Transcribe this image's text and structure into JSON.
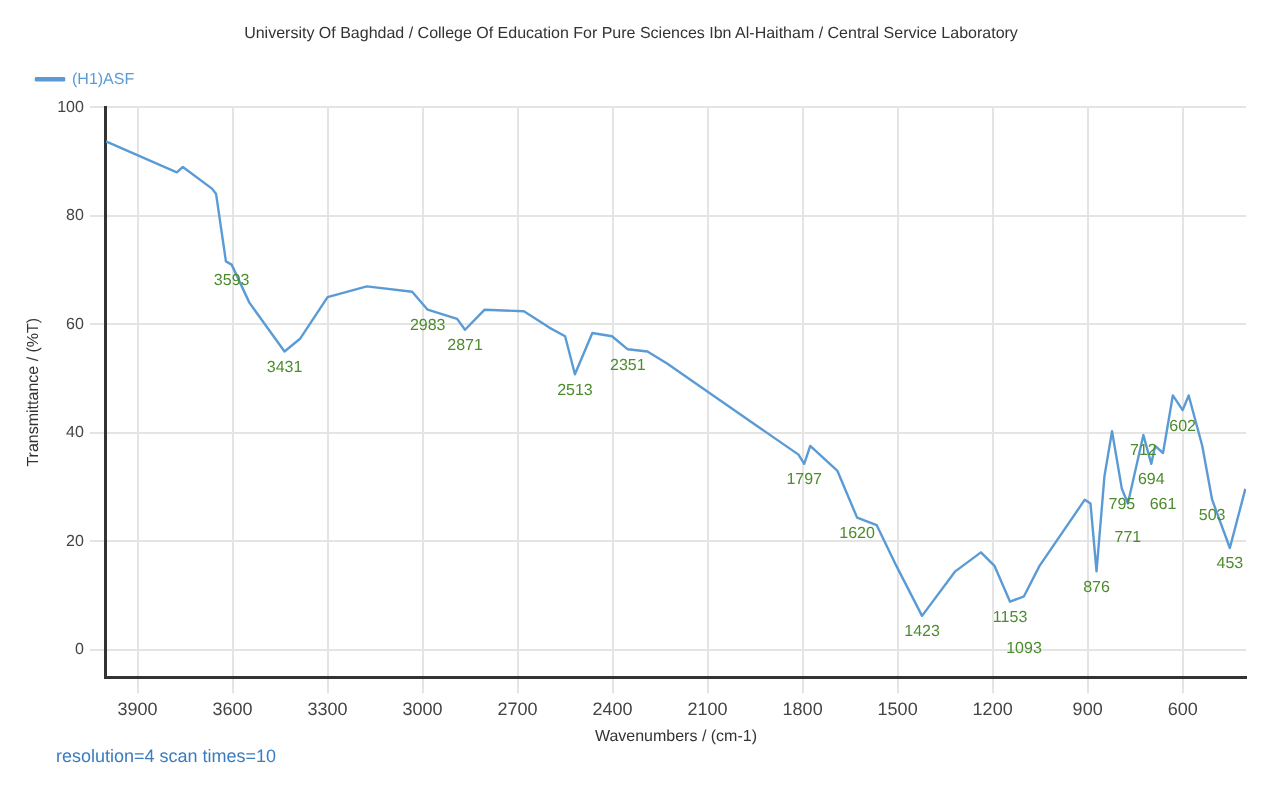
{
  "chart_data": {
    "type": "line",
    "title": "University Of Baghdad / College Of Education For Pure Sciences Ibn Al-Haitham / Central Service Laboratory",
    "xlabel": "Wavenumbers / (cm-1)",
    "ylabel": "Transmittance / (%T)",
    "xlim": [
      4000,
      400
    ],
    "xticks": [
      3900,
      3600,
      3300,
      3000,
      2700,
      2400,
      2100,
      1800,
      1500,
      1200,
      900,
      600
    ],
    "ylim": [
      -5,
      100
    ],
    "yticks": [
      0,
      20,
      40,
      60,
      80,
      100
    ],
    "grid": true,
    "legend": "top left",
    "marker": "none",
    "series": [
      {
        "name": "(H1)ASF",
        "color": "#5b9bd5",
        "x": [
          4000,
          3776,
          3757,
          3665,
          3652,
          3621,
          3603,
          3547,
          3436,
          3386,
          3300,
          3176,
          3033,
          2984,
          2891,
          2866,
          2804,
          2680,
          2600,
          2550,
          2519,
          2464,
          2402,
          2352,
          2290,
          2228,
          2061,
          1937,
          1813,
          1795,
          1776,
          1690,
          1628,
          1566,
          1504,
          1423,
          1318,
          1237,
          1194,
          1145,
          1101,
          1052,
          909,
          891,
          872,
          847,
          823,
          792,
          773,
          724,
          699,
          687,
          662,
          631,
          600,
          581,
          538,
          507,
          451,
          402
        ],
        "values": [
          93.7,
          88,
          89,
          85,
          84,
          71.6,
          71,
          64,
          55,
          57.4,
          65,
          67,
          66,
          62.7,
          61,
          59,
          62.7,
          62.4,
          59.4,
          57.8,
          50.8,
          58.4,
          57.8,
          55.4,
          55,
          52.8,
          46,
          41,
          36,
          34.3,
          37.6,
          33,
          24.4,
          23,
          15.5,
          6.3,
          14.5,
          18,
          15.5,
          8.9,
          9.9,
          15.5,
          27.7,
          27,
          14.5,
          32,
          40.3,
          29.7,
          27,
          39.6,
          34.3,
          37.6,
          36.3,
          46.9,
          44.2,
          46.9,
          37.6,
          27.7,
          18.8,
          29.7
        ]
      }
    ],
    "annotations": [
      {
        "text": "3593",
        "x": 3603,
        "y": 71
      },
      {
        "text": "3431",
        "x": 3436,
        "y": 55
      },
      {
        "text": "2983",
        "x": 2984,
        "y": 62.7
      },
      {
        "text": "2871",
        "x": 2866,
        "y": 59
      },
      {
        "text": "2513",
        "x": 2519,
        "y": 50.8
      },
      {
        "text": "2351",
        "x": 2352,
        "y": 55.4
      },
      {
        "text": "1797",
        "x": 1795,
        "y": 34.3
      },
      {
        "text": "1620",
        "x": 1628,
        "y": 24.4
      },
      {
        "text": "1423",
        "x": 1423,
        "y": 6.3
      },
      {
        "text": "1153",
        "x": 1145,
        "y": 8.9
      },
      {
        "text": "1093",
        "x": 1101,
        "y": 9.9
      },
      {
        "text": "876",
        "x": 872,
        "y": 14.5
      },
      {
        "text": "795",
        "x": 792,
        "y": 29.7
      },
      {
        "text": "771",
        "x": 773,
        "y": 27
      },
      {
        "text": "712",
        "x": 724,
        "y": 39.6
      },
      {
        "text": "694",
        "x": 699,
        "y": 34.3
      },
      {
        "text": "661",
        "x": 662,
        "y": 36.3
      },
      {
        "text": "602",
        "x": 600,
        "y": 44.2
      },
      {
        "text": "503",
        "x": 507,
        "y": 27.7
      },
      {
        "text": "453",
        "x": 451,
        "y": 18.8
      },
      "resolution=4 scan times=10"
    ]
  }
}
